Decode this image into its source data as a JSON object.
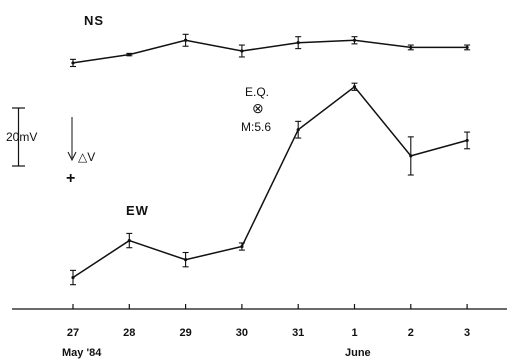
{
  "chart_data": {
    "type": "line",
    "categories": [
      "27",
      "28",
      "29",
      "30",
      "31",
      "1",
      "2",
      "3"
    ],
    "month_labels": [
      "May '84",
      "June"
    ],
    "series": [
      {
        "name": "NS",
        "values": [
          12.0,
          15.5,
          21.5,
          17.0,
          20.5,
          21.5,
          18.5,
          18.5
        ],
        "errors": [
          1.5,
          0.5,
          2.5,
          2.5,
          2.5,
          1.5,
          1.0,
          1.0
        ]
      },
      {
        "name": "EW",
        "values": [
          -78.0,
          -62.5,
          -70.5,
          -65.0,
          -16.0,
          2.0,
          -27.0,
          -20.5
        ],
        "errors": [
          3.0,
          3.0,
          3.0,
          1.5,
          3.5,
          1.5,
          8.0,
          3.5
        ]
      }
    ],
    "ylabel": "",
    "scale_bar": {
      "label": "20mV",
      "value": 20
    },
    "delta_v": {
      "label": "△V",
      "sign": "+"
    },
    "event": {
      "label": "E.Q.",
      "magnitude": "M:5.6",
      "symbol": "⊗",
      "date_index": 5
    },
    "ylim": [
      -100,
      30
    ]
  }
}
